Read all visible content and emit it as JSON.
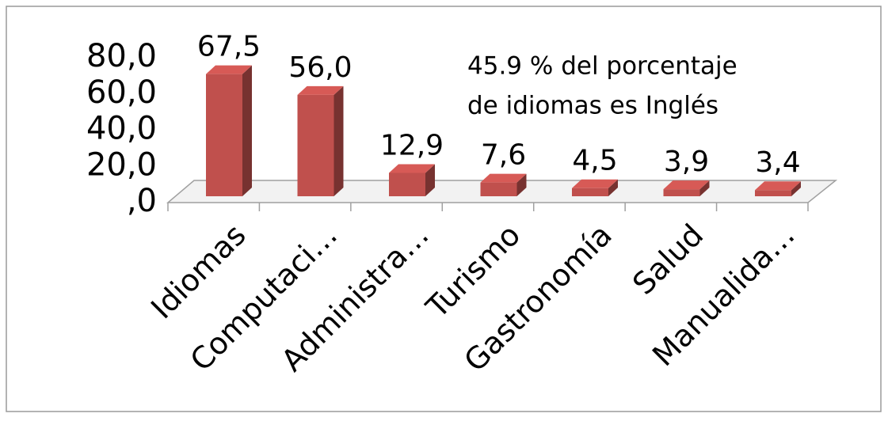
{
  "chart_data": {
    "type": "bar3d",
    "categories": [
      "Idiomas",
      "Computaci…",
      "Administra…",
      "Turismo",
      "Gastronomía",
      "Salud",
      "Manualida…"
    ],
    "values": [
      67.5,
      56.0,
      12.9,
      7.6,
      4.5,
      3.9,
      3.4
    ],
    "value_labels": [
      "67,5",
      "56,0",
      "12,9",
      "7,6",
      "4,5",
      "3,9",
      "3,4"
    ],
    "color": "#c0504d",
    "ylim": [
      0,
      80
    ],
    "yticks": [
      {
        "value": 0,
        "label": ",0"
      },
      {
        "value": 20,
        "label": "20,0"
      },
      {
        "value": 40,
        "label": "40,0"
      },
      {
        "value": 60,
        "label": "60,0"
      },
      {
        "value": 80,
        "label": "80,0"
      }
    ],
    "annotation": [
      "45.9 % del porcentaje",
      "de idiomas es Inglés"
    ]
  }
}
